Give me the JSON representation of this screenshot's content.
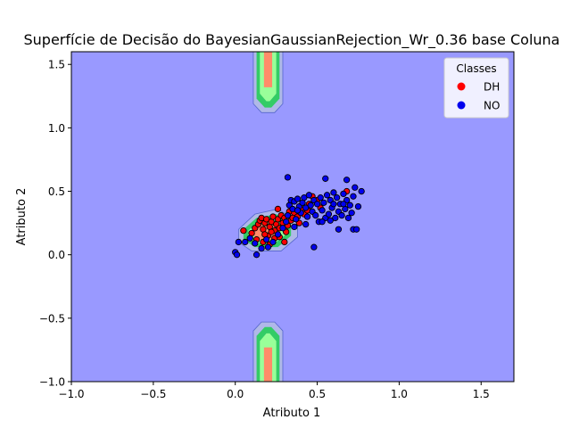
{
  "chart_data": {
    "type": "scatter",
    "title": "Superfície de Decisão do BayesianGaussianRejection_Wr_0.36 base Coluna",
    "xlabel": "Atributo 1",
    "ylabel": "Atributo 2",
    "xlim": [
      -1.0,
      1.7
    ],
    "ylim": [
      -1.0,
      1.6
    ],
    "xticks": [
      -1.0,
      -0.5,
      0.0,
      0.5,
      1.0,
      1.5
    ],
    "yticks": [
      -1.0,
      -0.5,
      0.0,
      0.5,
      1.0,
      1.5
    ],
    "xtick_labels": [
      "−1.0",
      "−0.5",
      "0.0",
      "0.5",
      "1.0",
      "1.5"
    ],
    "ytick_labels": [
      "−1.0",
      "−0.5",
      "0.0",
      "0.5",
      "1.0",
      "1.5"
    ],
    "grid": false,
    "legend": {
      "title": "Classes",
      "placement": "upper-right"
    },
    "background_region_color": "#9999ff",
    "decision_regions": [
      {
        "center": [
          0.2,
          1.45
        ],
        "levels": [
          {
            "color": "#b0b8e8",
            "poly": [
              [
                0.11,
                1.6
              ],
              [
                0.29,
                1.6
              ],
              [
                0.29,
                1.19
              ],
              [
                0.24,
                1.12
              ],
              [
                0.16,
                1.12
              ],
              [
                0.11,
                1.19
              ]
            ]
          },
          {
            "color": "#33cc66",
            "poly": [
              [
                0.13,
                1.6
              ],
              [
                0.27,
                1.6
              ],
              [
                0.27,
                1.23
              ],
              [
                0.22,
                1.16
              ],
              [
                0.18,
                1.16
              ],
              [
                0.13,
                1.23
              ]
            ]
          },
          {
            "color": "#99ff99",
            "poly": [
              [
                0.15,
                1.6
              ],
              [
                0.25,
                1.6
              ],
              [
                0.25,
                1.27
              ],
              [
                0.21,
                1.21
              ],
              [
                0.19,
                1.21
              ],
              [
                0.15,
                1.27
              ]
            ]
          },
          {
            "color": "#ff8c69",
            "poly": [
              [
                0.175,
                1.6
              ],
              [
                0.225,
                1.6
              ],
              [
                0.225,
                1.32
              ],
              [
                0.175,
                1.32
              ]
            ]
          }
        ]
      },
      {
        "center": [
          0.2,
          -0.75
        ],
        "levels": [
          {
            "color": "#b0b8e8",
            "poly": [
              [
                0.11,
                -1.0
              ],
              [
                0.29,
                -1.0
              ],
              [
                0.29,
                -0.6
              ],
              [
                0.24,
                -0.53
              ],
              [
                0.16,
                -0.53
              ],
              [
                0.11,
                -0.6
              ]
            ]
          },
          {
            "color": "#33cc66",
            "poly": [
              [
                0.13,
                -1.0
              ],
              [
                0.27,
                -1.0
              ],
              [
                0.27,
                -0.64
              ],
              [
                0.22,
                -0.57
              ],
              [
                0.18,
                -0.57
              ],
              [
                0.13,
                -0.64
              ]
            ]
          },
          {
            "color": "#99ff99",
            "poly": [
              [
                0.15,
                -1.0
              ],
              [
                0.25,
                -1.0
              ],
              [
                0.25,
                -0.68
              ],
              [
                0.21,
                -0.62
              ],
              [
                0.19,
                -0.62
              ],
              [
                0.15,
                -0.68
              ]
            ]
          },
          {
            "color": "#ff8c69",
            "poly": [
              [
                0.175,
                -1.0
              ],
              [
                0.225,
                -1.0
              ],
              [
                0.225,
                -0.73
              ],
              [
                0.175,
                -0.73
              ]
            ]
          }
        ]
      },
      {
        "center": [
          0.2,
          0.18
        ],
        "levels": [
          {
            "color": "#b0b8e8",
            "poly": [
              [
                0.02,
                0.2
              ],
              [
                0.12,
                0.32
              ],
              [
                0.26,
                0.36
              ],
              [
                0.38,
                0.26
              ],
              [
                0.38,
                0.14
              ],
              [
                0.28,
                0.03
              ],
              [
                0.1,
                0.03
              ],
              [
                0.02,
                0.1
              ]
            ]
          },
          {
            "color": "#33cc66",
            "poly": [
              [
                0.05,
                0.2
              ],
              [
                0.13,
                0.29
              ],
              [
                0.25,
                0.32
              ],
              [
                0.34,
                0.24
              ],
              [
                0.34,
                0.15
              ],
              [
                0.26,
                0.06
              ],
              [
                0.12,
                0.06
              ],
              [
                0.05,
                0.12
              ]
            ]
          },
          {
            "color": "#99ff99",
            "poly": [
              [
                0.08,
                0.19
              ],
              [
                0.14,
                0.26
              ],
              [
                0.24,
                0.28
              ],
              [
                0.31,
                0.22
              ],
              [
                0.31,
                0.16
              ],
              [
                0.24,
                0.09
              ],
              [
                0.13,
                0.09
              ],
              [
                0.08,
                0.14
              ]
            ]
          },
          {
            "color": "#ff8c69",
            "poly": [
              [
                0.11,
                0.19
              ],
              [
                0.16,
                0.24
              ],
              [
                0.22,
                0.25
              ],
              [
                0.27,
                0.21
              ],
              [
                0.27,
                0.17
              ],
              [
                0.22,
                0.12
              ],
              [
                0.15,
                0.12
              ],
              [
                0.11,
                0.15
              ]
            ]
          }
        ]
      }
    ],
    "series": [
      {
        "name": "DH",
        "color": "#ff0000",
        "points": [
          [
            0.05,
            0.19
          ],
          [
            0.1,
            0.17
          ],
          [
            0.12,
            0.21
          ],
          [
            0.14,
            0.24
          ],
          [
            0.15,
            0.27
          ],
          [
            0.16,
            0.29
          ],
          [
            0.17,
            0.2
          ],
          [
            0.18,
            0.25
          ],
          [
            0.19,
            0.28
          ],
          [
            0.2,
            0.15
          ],
          [
            0.21,
            0.22
          ],
          [
            0.22,
            0.26
          ],
          [
            0.23,
            0.3
          ],
          [
            0.24,
            0.19
          ],
          [
            0.25,
            0.24
          ],
          [
            0.26,
            0.28
          ],
          [
            0.27,
            0.21
          ],
          [
            0.28,
            0.31
          ],
          [
            0.29,
            0.25
          ],
          [
            0.3,
            0.29
          ],
          [
            0.31,
            0.18
          ],
          [
            0.32,
            0.23
          ],
          [
            0.33,
            0.34
          ],
          [
            0.34,
            0.27
          ],
          [
            0.36,
            0.33
          ],
          [
            0.38,
            0.3
          ],
          [
            0.4,
            0.36
          ],
          [
            0.42,
            0.32
          ],
          [
            0.45,
            0.4
          ],
          [
            0.47,
            0.46
          ],
          [
            0.5,
            0.43
          ],
          [
            0.13,
            0.12
          ],
          [
            0.17,
            0.1
          ],
          [
            0.21,
            0.08
          ],
          [
            0.24,
            0.13
          ],
          [
            0.27,
            0.14
          ],
          [
            0.3,
            0.1
          ],
          [
            0.35,
            0.29
          ],
          [
            0.39,
            0.25
          ],
          [
            0.44,
            0.35
          ],
          [
            0.68,
            0.5
          ],
          [
            0.52,
            0.37
          ],
          [
            0.18,
            0.16
          ],
          [
            0.22,
            0.18
          ],
          [
            0.26,
            0.36
          ]
        ]
      },
      {
        "name": "NO",
        "color": "#0000ee",
        "points": [
          [
            0.0,
            0.02
          ],
          [
            0.01,
            0.0
          ],
          [
            0.02,
            0.1
          ],
          [
            0.06,
            0.1
          ],
          [
            0.09,
            0.13
          ],
          [
            0.12,
            0.09
          ],
          [
            0.13,
            0.0
          ],
          [
            0.16,
            0.05
          ],
          [
            0.19,
            0.12
          ],
          [
            0.2,
            0.06
          ],
          [
            0.23,
            0.1
          ],
          [
            0.26,
            0.16
          ],
          [
            0.29,
            0.21
          ],
          [
            0.31,
            0.26
          ],
          [
            0.32,
            0.31
          ],
          [
            0.32,
            0.61
          ],
          [
            0.33,
            0.39
          ],
          [
            0.34,
            0.43
          ],
          [
            0.35,
            0.36
          ],
          [
            0.36,
            0.42
          ],
          [
            0.37,
            0.28
          ],
          [
            0.38,
            0.44
          ],
          [
            0.39,
            0.38
          ],
          [
            0.4,
            0.33
          ],
          [
            0.41,
            0.41
          ],
          [
            0.42,
            0.45
          ],
          [
            0.43,
            0.37
          ],
          [
            0.44,
            0.3
          ],
          [
            0.45,
            0.47
          ],
          [
            0.46,
            0.39
          ],
          [
            0.47,
            0.34
          ],
          [
            0.48,
            0.43
          ],
          [
            0.48,
            0.06
          ],
          [
            0.49,
            0.31
          ],
          [
            0.5,
            0.4
          ],
          [
            0.51,
            0.26
          ],
          [
            0.52,
            0.45
          ],
          [
            0.53,
            0.35
          ],
          [
            0.54,
            0.41
          ],
          [
            0.55,
            0.29
          ],
          [
            0.55,
            0.6
          ],
          [
            0.56,
            0.47
          ],
          [
            0.57,
            0.32
          ],
          [
            0.58,
            0.43
          ],
          [
            0.59,
            0.37
          ],
          [
            0.6,
            0.49
          ],
          [
            0.61,
            0.29
          ],
          [
            0.62,
            0.45
          ],
          [
            0.63,
            0.34
          ],
          [
            0.63,
            0.2
          ],
          [
            0.64,
            0.4
          ],
          [
            0.65,
            0.31
          ],
          [
            0.66,
            0.48
          ],
          [
            0.67,
            0.36
          ],
          [
            0.68,
            0.43
          ],
          [
            0.68,
            0.59
          ],
          [
            0.69,
            0.29
          ],
          [
            0.7,
            0.39
          ],
          [
            0.71,
            0.33
          ],
          [
            0.72,
            0.46
          ],
          [
            0.72,
            0.2
          ],
          [
            0.73,
            0.53
          ],
          [
            0.74,
            0.2
          ],
          [
            0.75,
            0.38
          ],
          [
            0.77,
            0.5
          ],
          [
            0.53,
            0.26
          ],
          [
            0.58,
            0.27
          ],
          [
            0.6,
            0.4
          ],
          [
            0.66,
            0.4
          ],
          [
            0.38,
            0.35
          ],
          [
            0.43,
            0.24
          ],
          [
            0.36,
            0.22
          ]
        ]
      }
    ]
  }
}
